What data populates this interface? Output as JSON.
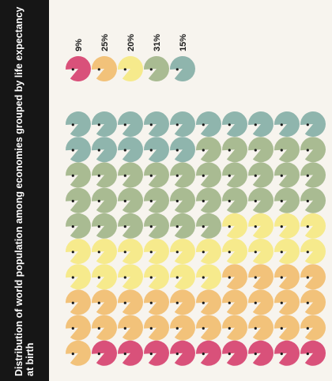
{
  "title": "Distribution of world population among economies grouped by life expectancy at birth",
  "chart_data": {
    "type": "pictogram",
    "title": "Distribution of world population among economies grouped by life expectancy at birth",
    "unit_count": 100,
    "grid": {
      "rows": 10,
      "cols": 10
    },
    "legend": [
      {
        "label": "9%",
        "value": 9,
        "color": "#d9517a"
      },
      {
        "label": "25%",
        "value": 25,
        "color": "#f2c27a"
      },
      {
        "label": "20%",
        "value": 20,
        "color": "#f6ea8c"
      },
      {
        "label": "31%",
        "value": 31,
        "color": "#a9bb92"
      },
      {
        "label": "15%",
        "value": 15,
        "color": "#8fb5ad"
      }
    ],
    "fill_order": "bottom-to-top, right-to-left"
  }
}
